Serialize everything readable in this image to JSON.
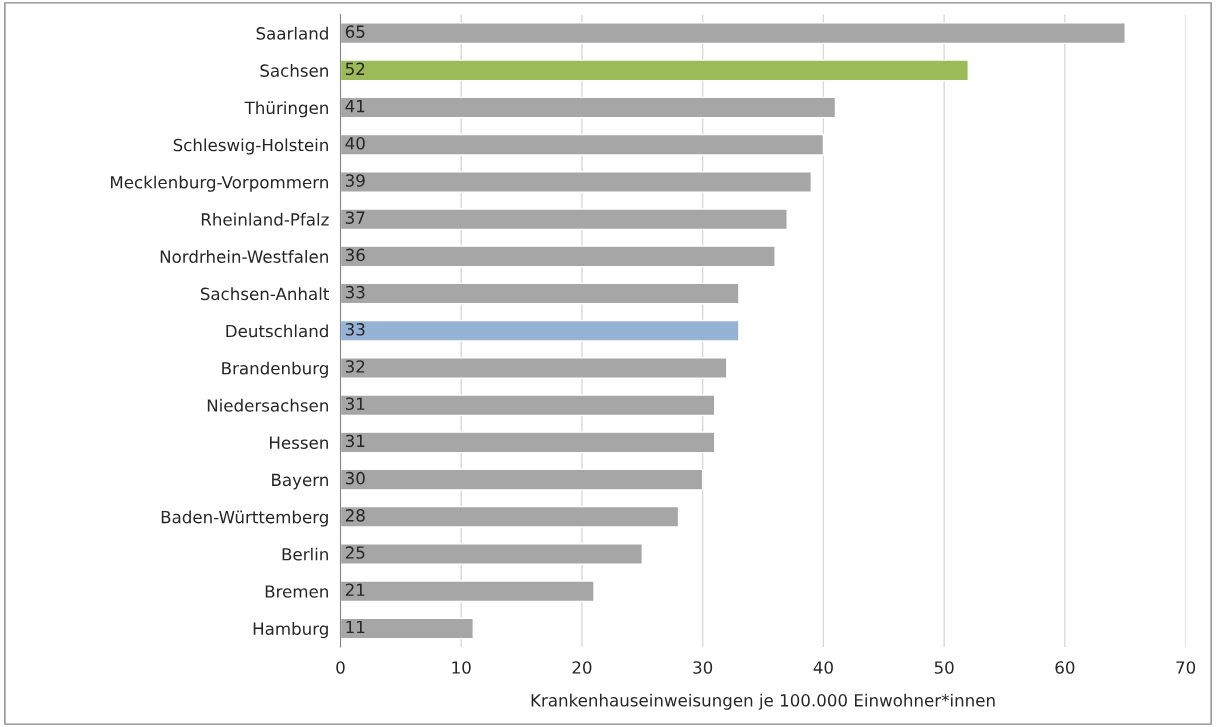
{
  "chart_data": {
    "type": "bar",
    "orientation": "horizontal",
    "xlabel": "Krankenhauseinweisungen je 100.000 Einwohner*innen",
    "categories": [
      "Saarland",
      "Sachsen",
      "Thüringen",
      "Schleswig-Holstein",
      "Mecklenburg-Vorpommern",
      "Rheinland-Pfalz",
      "Nordrhein-Westfalen",
      "Sachsen-Anhalt",
      "Deutschland",
      "Brandenburg",
      "Niedersachsen",
      "Hessen",
      "Bayern",
      "Baden-Württemberg",
      "Berlin",
      "Bremen",
      "Hamburg"
    ],
    "values": [
      65,
      52,
      41,
      40,
      39,
      37,
      36,
      33,
      33,
      32,
      31,
      31,
      30,
      28,
      25,
      21,
      11
    ],
    "colors": [
      "#a6a6a6",
      "#9bbb59",
      "#a6a6a6",
      "#a6a6a6",
      "#a6a6a6",
      "#a6a6a6",
      "#a6a6a6",
      "#a6a6a6",
      "#95b3d7",
      "#a6a6a6",
      "#a6a6a6",
      "#a6a6a6",
      "#a6a6a6",
      "#a6a6a6",
      "#a6a6a6",
      "#a6a6a6",
      "#a6a6a6"
    ],
    "xlim": [
      0,
      70
    ],
    "xticks": [
      0,
      10,
      20,
      30,
      40,
      50,
      60,
      70
    ],
    "grid": "x",
    "data_labels": true
  }
}
